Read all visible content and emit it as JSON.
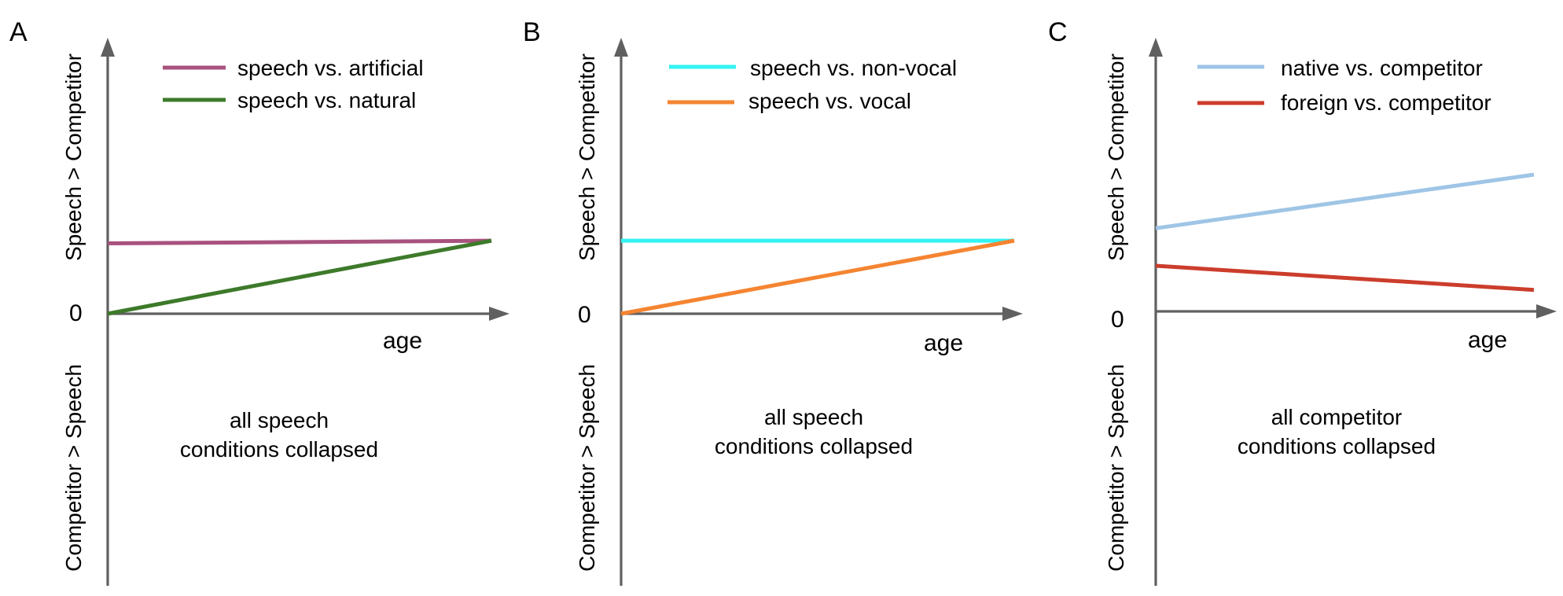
{
  "chart_data": [
    {
      "type": "line",
      "panel_label": "A",
      "ylabel_upper": "Speech > Competitor",
      "ylabel_lower": "Competitor > Speech",
      "zero_label": "0",
      "xlabel": "age",
      "annotation_lines": [
        "all speech",
        "conditions collapsed"
      ],
      "legend_placement": "top",
      "series": [
        {
          "name": "speech vs. artificial",
          "color": "#a8527e",
          "x": [
            0,
            1
          ],
          "y": [
            0.26,
            0.27
          ]
        },
        {
          "name": "speech vs. natural",
          "color": "#3d7a2a",
          "x": [
            0,
            1
          ],
          "y": [
            0,
            0.27
          ]
        }
      ]
    },
    {
      "type": "line",
      "panel_label": "B",
      "ylabel_upper": "Speech > Competitor",
      "ylabel_lower": "Competitor > Speech",
      "zero_label": "0",
      "xlabel": "age",
      "annotation_lines": [
        "all speech",
        "conditions collapsed"
      ],
      "legend_placement": "top",
      "series": [
        {
          "name": "speech vs. non-vocal",
          "color": "#33f3f3",
          "x": [
            0,
            1
          ],
          "y": [
            0.27,
            0.27
          ]
        },
        {
          "name": "speech vs. vocal",
          "color": "#f58431",
          "x": [
            0,
            1
          ],
          "y": [
            0,
            0.27
          ]
        }
      ]
    },
    {
      "type": "line",
      "panel_label": "C",
      "ylabel_upper": "Speech > Competitor",
      "ylabel_lower": "Competitor > Speech",
      "zero_label": "0",
      "xlabel": "age",
      "annotation_lines": [
        "all competitor",
        "conditions collapsed"
      ],
      "legend_placement": "top",
      "series": [
        {
          "name": "native vs. competitor",
          "color": "#9fc5e6",
          "x": [
            0,
            1
          ],
          "y": [
            0.31,
            0.51
          ]
        },
        {
          "name": "foreign vs. competitor",
          "color": "#cc3d2c",
          "x": [
            0,
            1
          ],
          "y": [
            0.17,
            0.08
          ]
        }
      ]
    }
  ],
  "colors": {
    "axis": "#606060"
  }
}
